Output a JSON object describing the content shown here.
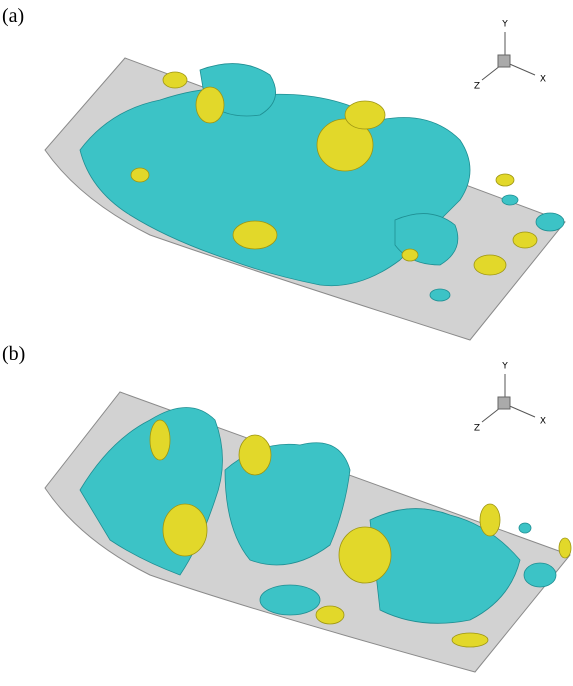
{
  "panels": [
    {
      "label": "(a)",
      "axes": {
        "y": "Y",
        "x": "X",
        "z": "Z"
      }
    },
    {
      "label": "(b)",
      "axes": {
        "y": "Y",
        "x": "X",
        "z": "Z"
      }
    }
  ]
}
